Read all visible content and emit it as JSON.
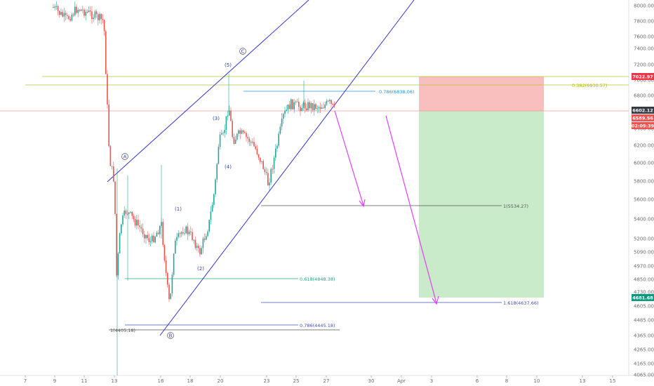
{
  "chart_data": {
    "type": "candlestick",
    "y_axis": {
      "ticks": [
        "8000.00",
        "7800.00",
        "7600.00",
        "7400.00",
        "7200.00",
        "7000.00",
        "6800.00",
        "6600.00",
        "6400.00",
        "6200.00",
        "6000.00",
        "5800.00",
        "5600.00",
        "5400.00",
        "5200.00",
        "5090.00",
        "4970.00",
        "4850.00",
        "4730.00",
        "4605.00",
        "4485.00",
        "4365.00",
        "4265.00",
        "4165.00",
        "4065.00"
      ],
      "scale": "log"
    },
    "x_axis": {
      "ticks": [
        "7",
        "9",
        "11",
        "13",
        "16",
        "18",
        "20",
        "23",
        "25",
        "27",
        "30",
        "Apr",
        "3",
        "6",
        "8",
        "10",
        "13",
        "15"
      ]
    },
    "price_badges": {
      "stop": {
        "label": "7022.97",
        "color": "#f23645"
      },
      "last": {
        "label": "6602.12",
        "color": "#363a45"
      },
      "current": {
        "label": "6589.56",
        "color": "#ef5350"
      },
      "countdown": {
        "label": "02:09:39",
        "color": "#ef5350"
      },
      "target": {
        "label": "4681.68",
        "color": "#089981"
      }
    },
    "fib_levels": [
      {
        "label": "0.786(6838.06)",
        "color": "#2196f3"
      },
      {
        "label": "0.382(6930.57)",
        "color": "#b5b800"
      },
      {
        "label": "1(5534.27)",
        "color": "#555555"
      },
      {
        "label": "0.618(4848.38)",
        "color": "#22ab7a"
      },
      {
        "label": "0.786(4445.18)",
        "color": "#3f51b5"
      },
      {
        "label": "1(4405.18)",
        "color": "#555555"
      },
      {
        "label": "1.618(4637.66)",
        "color": "#3f51b5"
      }
    ],
    "wave_labels": [
      "A",
      "B",
      "C",
      "(1)",
      "(2)",
      "(3)",
      "(4)",
      "(5)"
    ],
    "colors": {
      "up": "#26a69a",
      "down": "#ef5350",
      "channel": "#3333cc",
      "arrow": "#e040fb"
    }
  }
}
